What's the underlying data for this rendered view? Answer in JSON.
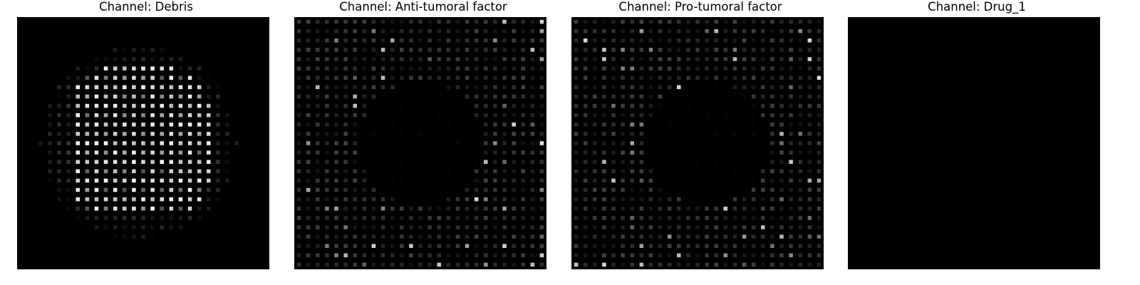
{
  "figure": {
    "background": "#ffffff",
    "image_background": "#000000",
    "colormap": "gray"
  },
  "chart_data": [
    {
      "type": "heatmap",
      "title": "Channel: Debris",
      "grid": [
        27,
        27
      ],
      "pattern": "filled-disc",
      "center": [
        13,
        12.5
      ],
      "radius": 10.5,
      "bright_rows": [
        [
          5,
          20
        ],
        [
          6,
          20
        ]
      ],
      "max_intensity": 1.0
    },
    {
      "type": "heatmap",
      "title": "Channel: Anti-tumoral factor",
      "grid": [
        27,
        27
      ],
      "pattern": "ring-background",
      "hole_center": [
        13,
        13
      ],
      "hole_radius": 6.5,
      "max_intensity": 0.9
    },
    {
      "type": "heatmap",
      "title": "Channel: Pro-tumoral factor",
      "grid": [
        27,
        27
      ],
      "pattern": "ring-background",
      "hole_center": [
        13,
        14
      ],
      "hole_radius": 6.5,
      "max_intensity": 0.85
    },
    {
      "type": "heatmap",
      "title": "Channel: Drug_1",
      "grid": [
        27,
        27
      ],
      "pattern": "empty",
      "max_intensity": 0.0
    }
  ]
}
